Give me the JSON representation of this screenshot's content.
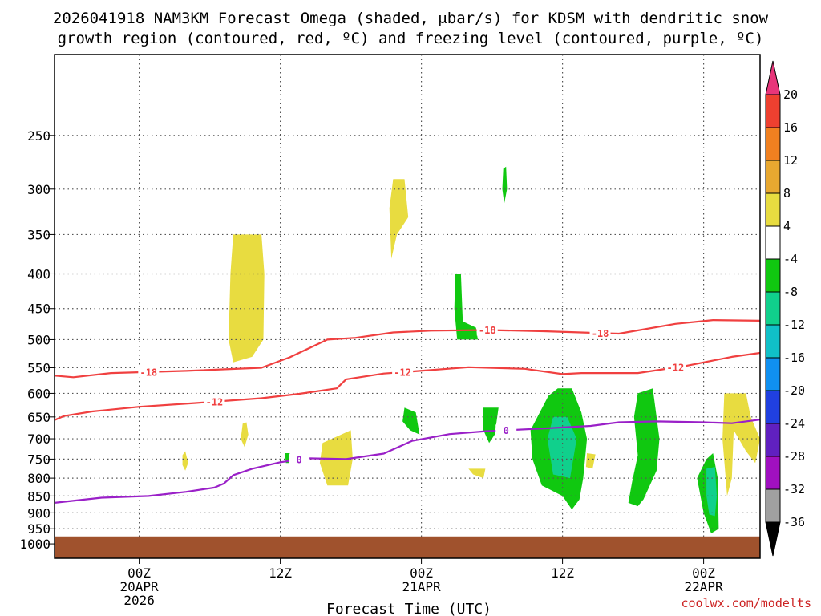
{
  "chart_data": {
    "type": "time-height",
    "title_line1": "2026041918 NAM3KM Forecast Omega (shaded, μbar/s) for KDSM with dendritic snow",
    "title_line2": "growth region (contoured, red, ºC) and freezing level (contoured, purple, ºC)",
    "xlabel": "Forecast Time (UTC)",
    "credit": "coolwx.com/modelts",
    "x_range_hours": [
      -9,
      66
    ],
    "y_range_hpa": [
      1050,
      190
    ],
    "x_ticks": [
      {
        "hour": 0,
        "label": "00Z",
        "sub1": "20APR",
        "sub2": "2026"
      },
      {
        "hour": 15,
        "label": "12Z",
        "sub1": "",
        "sub2": ""
      },
      {
        "hour": 30,
        "label": "00Z",
        "sub1": "21APR",
        "sub2": ""
      },
      {
        "hour": 45,
        "label": "12Z",
        "sub1": "",
        "sub2": ""
      },
      {
        "hour": 60,
        "label": "00Z",
        "sub1": "22APR",
        "sub2": ""
      }
    ],
    "y_ticks": [
      250,
      300,
      350,
      400,
      450,
      500,
      550,
      600,
      650,
      700,
      750,
      800,
      850,
      900,
      950,
      1000
    ],
    "colorbar": {
      "labels": [
        "20",
        "16",
        "12",
        "8",
        "4",
        "-4",
        "-8",
        "-12",
        "-16",
        "-20",
        "-24",
        "-28",
        "-32",
        "-36"
      ],
      "colors": [
        "#e8357a",
        "#ee4030",
        "#f08020",
        "#e8a830",
        "#e8dc40",
        "#ffffff",
        "#10c810",
        "#10d08c",
        "#10c0c8",
        "#1090f0",
        "#2040e0",
        "#6020c0",
        "#a010c0",
        "#a0a0a0",
        "#000000"
      ]
    },
    "contours": [
      {
        "name": "dgz-minus-18",
        "label": "-18",
        "color": "#f04040",
        "points": [
          [
            -9,
            565
          ],
          [
            -7,
            568
          ],
          [
            -3,
            560
          ],
          [
            5,
            556
          ],
          [
            13,
            550
          ],
          [
            16,
            531
          ],
          [
            20,
            500
          ],
          [
            23,
            497
          ],
          [
            27,
            488
          ],
          [
            31,
            485
          ],
          [
            37,
            484
          ],
          [
            43,
            486
          ],
          [
            51,
            490
          ],
          [
            57,
            474
          ],
          [
            61,
            468
          ],
          [
            66,
            469
          ]
        ]
      },
      {
        "name": "dgz-minus-12",
        "label": "-12",
        "color": "#f04040",
        "points": [
          [
            -9,
            657
          ],
          [
            -8,
            648
          ],
          [
            -5,
            638
          ],
          [
            0,
            628
          ],
          [
            6,
            620
          ],
          [
            13,
            610
          ],
          [
            17,
            601
          ],
          [
            21,
            590
          ],
          [
            22,
            572
          ],
          [
            26,
            561
          ],
          [
            29,
            557
          ],
          [
            35,
            549
          ],
          [
            41,
            552
          ],
          [
            45,
            562
          ],
          [
            47,
            560
          ],
          [
            53,
            560
          ],
          [
            58,
            547
          ],
          [
            63,
            530
          ],
          [
            66,
            523
          ]
        ]
      },
      {
        "name": "freezing-level-0",
        "label": "0",
        "color": "#9a20c8",
        "points": [
          [
            -9,
            870
          ],
          [
            -4,
            855
          ],
          [
            1,
            850
          ],
          [
            5,
            838
          ],
          [
            8,
            826
          ],
          [
            9,
            815
          ],
          [
            10,
            792
          ],
          [
            12,
            775
          ],
          [
            15,
            758
          ],
          [
            18,
            748
          ],
          [
            22,
            750
          ],
          [
            26,
            736
          ],
          [
            29,
            705
          ],
          [
            33,
            689
          ],
          [
            37,
            682
          ],
          [
            43,
            676
          ],
          [
            48,
            670
          ],
          [
            51,
            662
          ],
          [
            55,
            660
          ],
          [
            60,
            662
          ],
          [
            63,
            664
          ],
          [
            66,
            656
          ]
        ]
      }
    ],
    "omega_regions": [
      {
        "name": "omega-up-4-a",
        "value": 4,
        "points": [
          [
            10,
            350
          ],
          [
            13,
            350
          ],
          [
            13.3,
            400
          ],
          [
            13.2,
            500
          ],
          [
            12,
            530
          ],
          [
            10,
            540
          ],
          [
            9.5,
            500
          ],
          [
            9.7,
            400
          ]
        ]
      },
      {
        "name": "omega-up-4-b",
        "value": 4,
        "points": [
          [
            27,
            290
          ],
          [
            28.2,
            290
          ],
          [
            28.6,
            330
          ],
          [
            27.4,
            350
          ],
          [
            26.8,
            380
          ],
          [
            26.6,
            320
          ]
        ]
      },
      {
        "name": "omega-up-4-c",
        "value": 4,
        "points": [
          [
            19.5,
            710
          ],
          [
            22.5,
            680
          ],
          [
            22.7,
            750
          ],
          [
            22.2,
            820
          ],
          [
            20,
            820
          ],
          [
            19.2,
            760
          ]
        ]
      },
      {
        "name": "omega-up-4-d",
        "value": 4,
        "points": [
          [
            11,
            665
          ],
          [
            11.4,
            662
          ],
          [
            11.6,
            690
          ],
          [
            11.2,
            720
          ],
          [
            10.8,
            700
          ]
        ]
      },
      {
        "name": "omega-up-4-e",
        "value": 4,
        "points": [
          [
            4.6,
            740
          ],
          [
            4.9,
            730
          ],
          [
            5.2,
            760
          ],
          [
            4.9,
            780
          ],
          [
            4.6,
            765
          ]
        ]
      },
      {
        "name": "omega-up-4-f",
        "value": 4,
        "points": [
          [
            35,
            775
          ],
          [
            36.8,
            775
          ],
          [
            36.6,
            800
          ],
          [
            35.5,
            790
          ]
        ]
      },
      {
        "name": "omega-up-4-g",
        "value": 4,
        "points": [
          [
            47.6,
            735
          ],
          [
            48.5,
            738
          ],
          [
            48.2,
            775
          ],
          [
            47.5,
            770
          ]
        ]
      },
      {
        "name": "omega-up-4-h",
        "value": 4,
        "points": [
          [
            62.2,
            600
          ],
          [
            64.5,
            600
          ],
          [
            65,
            650
          ],
          [
            66,
            700
          ],
          [
            65.5,
            760
          ],
          [
            64.5,
            730
          ],
          [
            63.2,
            680
          ],
          [
            63,
            800
          ],
          [
            62.5,
            850
          ],
          [
            62,
            700
          ]
        ]
      },
      {
        "name": "omega-down-4-a",
        "value": -4,
        "points": [
          [
            33.6,
            400
          ],
          [
            34.2,
            400
          ],
          [
            34.4,
            470
          ],
          [
            35.8,
            480
          ],
          [
            36,
            500
          ],
          [
            33.8,
            500
          ],
          [
            33.5,
            450
          ]
        ]
      },
      {
        "name": "omega-down-4-b",
        "value": -4,
        "points": [
          [
            38.7,
            280
          ],
          [
            39,
            278
          ],
          [
            39.1,
            300
          ],
          [
            38.8,
            315
          ],
          [
            38.6,
            300
          ]
        ]
      },
      {
        "name": "omega-down-4-c",
        "value": -4,
        "points": [
          [
            28.2,
            630
          ],
          [
            29.4,
            640
          ],
          [
            29.8,
            690
          ],
          [
            28.8,
            680
          ],
          [
            28,
            660
          ]
        ]
      },
      {
        "name": "omega-down-4-d",
        "value": -4,
        "points": [
          [
            15.5,
            735
          ],
          [
            16,
            735
          ],
          [
            16,
            760
          ],
          [
            15.6,
            760
          ]
        ]
      },
      {
        "name": "omega-down-4-e",
        "value": -4,
        "points": [
          [
            36.6,
            630
          ],
          [
            38.2,
            630
          ],
          [
            37.8,
            690
          ],
          [
            37.2,
            710
          ],
          [
            36.6,
            680
          ]
        ]
      },
      {
        "name": "omega-down-4-f",
        "value": -4,
        "points": [
          [
            43.5,
            605
          ],
          [
            44.5,
            590
          ],
          [
            46,
            590
          ],
          [
            47,
            640
          ],
          [
            47.6,
            700
          ],
          [
            47.2,
            800
          ],
          [
            46.8,
            860
          ],
          [
            46,
            890
          ],
          [
            45,
            850
          ],
          [
            42.8,
            820
          ],
          [
            41.8,
            750
          ],
          [
            41.6,
            680
          ]
        ]
      },
      {
        "name": "omega-down-4-g",
        "value": -4,
        "points": [
          [
            53,
            600
          ],
          [
            54.6,
            590
          ],
          [
            55.3,
            700
          ],
          [
            55,
            780
          ],
          [
            53.6,
            860
          ],
          [
            53,
            880
          ],
          [
            52,
            870
          ],
          [
            52.4,
            810
          ],
          [
            53,
            740
          ],
          [
            52.6,
            650
          ]
        ]
      },
      {
        "name": "omega-down-4-h",
        "value": -4,
        "points": [
          [
            60.3,
            750
          ],
          [
            61,
            735
          ],
          [
            61.5,
            800
          ],
          [
            61.6,
            950
          ],
          [
            60.8,
            965
          ],
          [
            60,
            900
          ],
          [
            59.3,
            800
          ]
        ]
      },
      {
        "name": "omega-down-8-a",
        "value": -8,
        "points": [
          [
            44,
            650
          ],
          [
            45.5,
            650
          ],
          [
            46.5,
            700
          ],
          [
            45.8,
            800
          ],
          [
            44,
            790
          ],
          [
            43.4,
            700
          ]
        ]
      },
      {
        "name": "omega-down-8-b",
        "value": -8,
        "points": [
          [
            60.3,
            775
          ],
          [
            61.2,
            770
          ],
          [
            61.4,
            850
          ],
          [
            61.2,
            910
          ],
          [
            60.6,
            905
          ],
          [
            60.3,
            850
          ]
        ]
      }
    ],
    "surface_hpa": 975
  }
}
